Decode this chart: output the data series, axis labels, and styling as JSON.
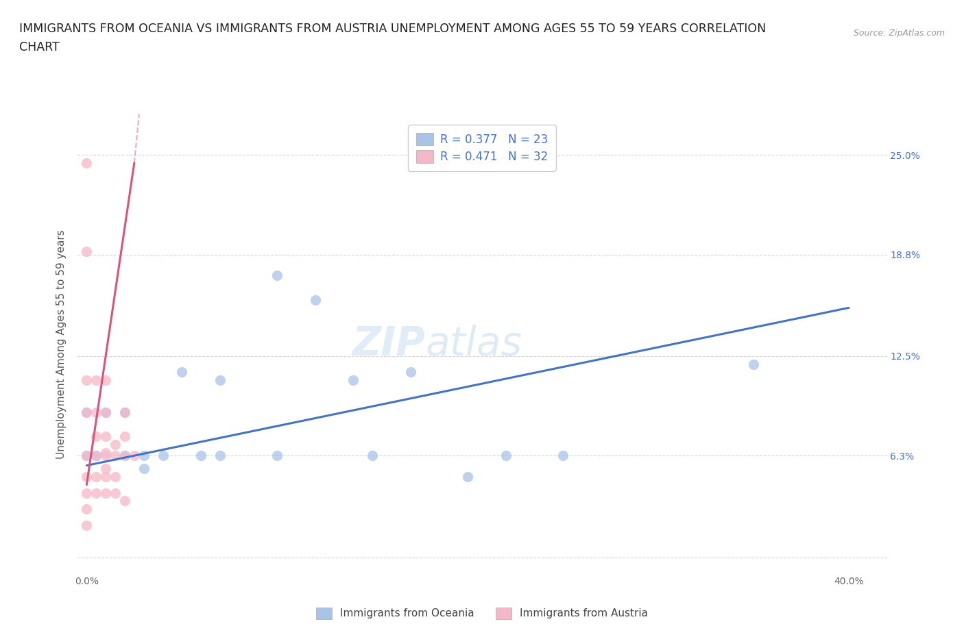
{
  "title_line1": "IMMIGRANTS FROM OCEANIA VS IMMIGRANTS FROM AUSTRIA UNEMPLOYMENT AMONG AGES 55 TO 59 YEARS CORRELATION",
  "title_line2": "CHART",
  "source": "Source: ZipAtlas.com",
  "ylabel": "Unemployment Among Ages 55 to 59 years",
  "xlim": [
    -0.005,
    0.42
  ],
  "ylim": [
    -0.01,
    0.275
  ],
  "xtick_positions": [
    0.0,
    0.1,
    0.2,
    0.3,
    0.4
  ],
  "xticklabels": [
    "0.0%",
    "",
    "",
    "",
    "40.0%"
  ],
  "ytick_positions": [
    0.0,
    0.063,
    0.125,
    0.188,
    0.25
  ],
  "yticklabels_right": [
    "",
    "6.3%",
    "12.5%",
    "18.8%",
    "25.0%"
  ],
  "watermark_top": "ZIP",
  "watermark_bot": "atlas",
  "blue_R": "0.377",
  "blue_N": "23",
  "pink_R": "0.471",
  "pink_N": "32",
  "blue_fill_color": "#aac4e8",
  "pink_fill_color": "#f5b8c8",
  "blue_line_color": "#4472c4",
  "pink_line_color": "#d9547a",
  "legend_blue_label": "Immigrants from Oceania",
  "legend_pink_label": "Immigrants from Austria",
  "blue_scatter_x": [
    0.0,
    0.0,
    0.005,
    0.01,
    0.02,
    0.02,
    0.03,
    0.03,
    0.04,
    0.05,
    0.06,
    0.07,
    0.07,
    0.1,
    0.1,
    0.12,
    0.14,
    0.15,
    0.17,
    0.2,
    0.22,
    0.25,
    0.35
  ],
  "blue_scatter_y": [
    0.063,
    0.09,
    0.063,
    0.09,
    0.063,
    0.09,
    0.055,
    0.063,
    0.063,
    0.115,
    0.063,
    0.11,
    0.063,
    0.175,
    0.063,
    0.16,
    0.11,
    0.063,
    0.115,
    0.05,
    0.063,
    0.063,
    0.12
  ],
  "pink_scatter_x": [
    0.0,
    0.0,
    0.0,
    0.0,
    0.0,
    0.0,
    0.0,
    0.0,
    0.0,
    0.005,
    0.005,
    0.005,
    0.005,
    0.005,
    0.005,
    0.01,
    0.01,
    0.01,
    0.01,
    0.01,
    0.01,
    0.01,
    0.01,
    0.015,
    0.015,
    0.015,
    0.015,
    0.02,
    0.02,
    0.02,
    0.02,
    0.025
  ],
  "pink_scatter_y": [
    0.245,
    0.19,
    0.11,
    0.09,
    0.063,
    0.05,
    0.04,
    0.03,
    0.02,
    0.11,
    0.09,
    0.075,
    0.063,
    0.05,
    0.04,
    0.11,
    0.09,
    0.075,
    0.065,
    0.063,
    0.055,
    0.05,
    0.04,
    0.07,
    0.063,
    0.05,
    0.04,
    0.09,
    0.075,
    0.063,
    0.035,
    0.063
  ],
  "blue_trend_x0": 0.0,
  "blue_trend_y0": 0.057,
  "blue_trend_x1": 0.4,
  "blue_trend_y1": 0.155,
  "pink_trend_solid_x0": 0.0,
  "pink_trend_solid_y0": 0.045,
  "pink_trend_solid_x1": 0.025,
  "pink_trend_solid_y1": 0.245,
  "pink_trend_dash_x0": 0.0,
  "pink_trend_dash_y0": 0.045,
  "pink_trend_dash_x1": 0.01,
  "pink_trend_dash_y1": 0.14,
  "background_color": "#ffffff",
  "grid_color": "#cccccc",
  "scatter_size": 120,
  "scatter_alpha": 0.75
}
